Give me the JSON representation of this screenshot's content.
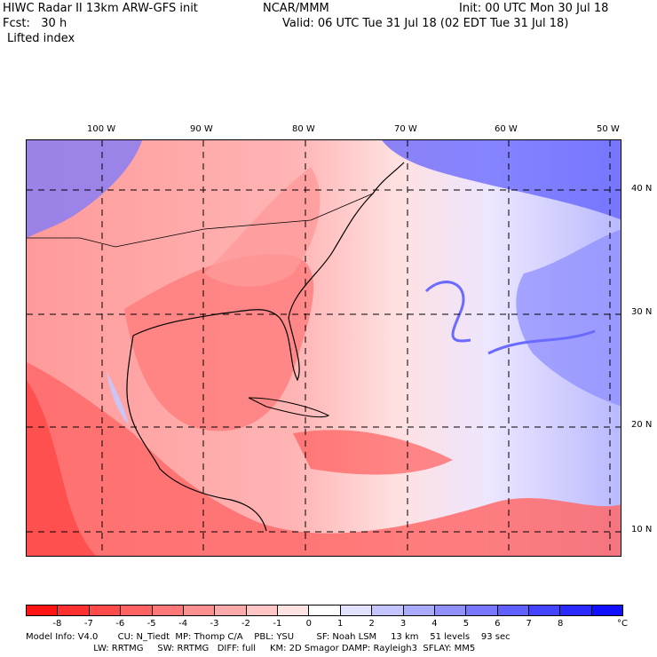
{
  "header": {
    "title_left": "HIWC Radar II 13km ARW-GFS init",
    "source": "NCAR/MMM",
    "init": "Init: 00 UTC Mon 30 Jul 18",
    "fcst": "Fcst:   30 h",
    "valid": "Valid: 06 UTC Tue 31 Jul 18 (02 EDT Tue 31 Jul 18)",
    "field": "Lifted index"
  },
  "axes": {
    "lon_labels": [
      "100 W",
      "90 W",
      "80 W",
      "70 W",
      "60 W",
      "50 W"
    ],
    "lat_labels": [
      "40 N",
      "30 N",
      "20 N",
      "10 N"
    ]
  },
  "colorbar": {
    "unit": "°C",
    "labels": [
      "-8",
      "-7",
      "-6",
      "-5",
      "-4",
      "-3",
      "-2",
      "-1",
      "0",
      "1",
      "2",
      "3",
      "4",
      "5",
      "6",
      "7",
      "8"
    ],
    "colors": [
      "#ff1414",
      "#ff3030",
      "#ff4a4a",
      "#ff6262",
      "#ff7878",
      "#ff9090",
      "#ffaaaa",
      "#ffc4c4",
      "#ffe2e2",
      "#ffffff",
      "#e2e2ff",
      "#c4c4ff",
      "#aaaaff",
      "#9090ff",
      "#7878ff",
      "#6060ff",
      "#4444ff",
      "#2a2aff",
      "#1010ff"
    ]
  },
  "model_info": {
    "line1": "Model Info: V4.0       CU: N_Tiedt  MP: Thomp C/A    PBL: YSU        SF: Noah LSM     13 km    51 levels    93 sec",
    "line2": "                        LW: RRTMG     SW: RRTMG   DIFF: full     KM: 2D Smagor DAMP: Rayleigh3  SFLAY: MM5"
  }
}
